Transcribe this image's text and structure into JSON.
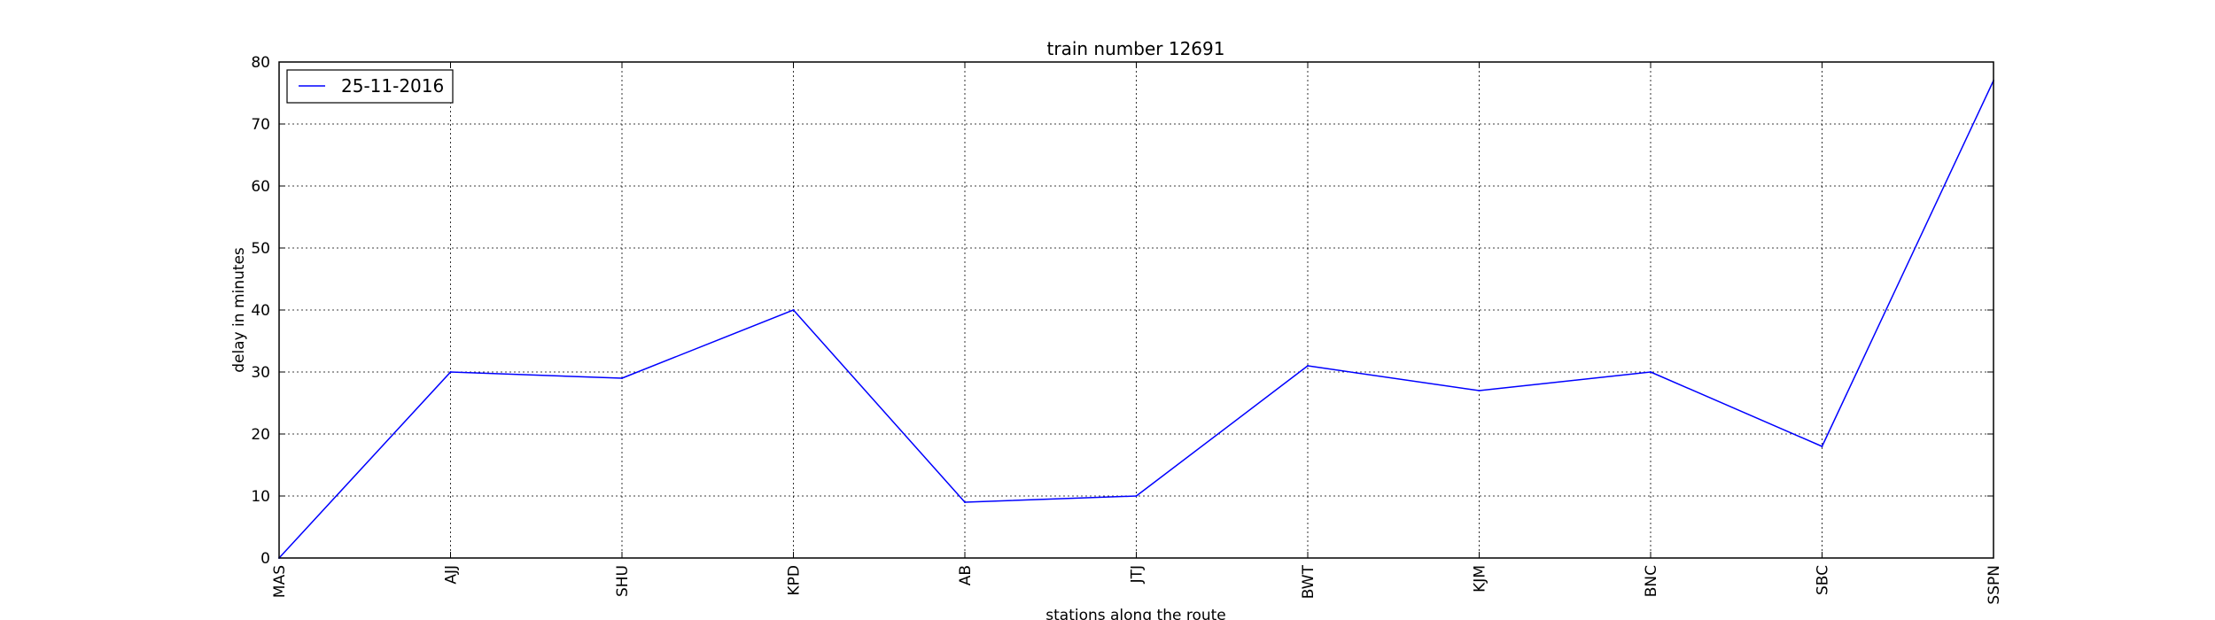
{
  "chart_data": {
    "type": "line",
    "title": "train number 12691",
    "xlabel": "stations along the route",
    "ylabel": "delay in minutes",
    "categories": [
      "MAS",
      "AJJ",
      "SHU",
      "KPD",
      "AB",
      "JTJ",
      "BWT",
      "KJM",
      "BNC",
      "SBC",
      "SSPN"
    ],
    "series": [
      {
        "name": "25-11-2016",
        "color": "#0000ff",
        "values": [
          0,
          30,
          29,
          40,
          9,
          10,
          31,
          27,
          30,
          18,
          77
        ]
      }
    ],
    "ylim": [
      0,
      80
    ],
    "yticks": [
      0,
      10,
      20,
      30,
      40,
      50,
      60,
      70,
      80
    ],
    "grid": true,
    "legend_position": "top-left"
  }
}
